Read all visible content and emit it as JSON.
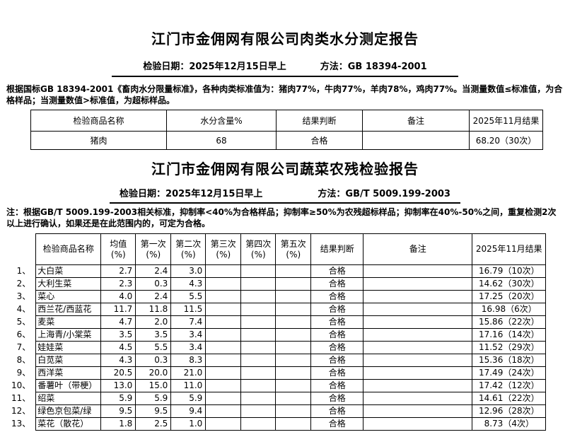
{
  "colors": {
    "text": "#000000",
    "background": "#ffffff",
    "border": "#000000"
  },
  "report1": {
    "title": "江门市金佣网有限公司肉类水分测定报告",
    "date_line": "检验日期：2025年12月15日早上",
    "method_line": "方法：GB 18394-2001",
    "note": "根据国标GB 18394-2001《畜肉水分限量标准》，各种肉类标准值为：猪肉77%，牛肉77%，羊肉78%，鸡肉77%。当测量数值≤标准值，为合格样品；当测量数值>标准值，为超标样品。",
    "table": {
      "headers": [
        "检验商品名称",
        "水分含量%",
        "结果判断",
        "备注",
        "2025年11月结果"
      ],
      "row": {
        "name": "猪肉",
        "moisture": "68",
        "result": "合格",
        "remark": "",
        "nov": "68.20（30次）"
      }
    }
  },
  "report2": {
    "title": "江门市金佣网有限公司蔬菜农残检验报告",
    "date_line": "检验日期：2025年12月15日早上",
    "method_line": "方法：GB/T 5009.199-2003",
    "note": "注：根据GB/T 5009.199-2003相关标准，抑制率<40%为合格样品；抑制率≥50%为农残超标样品；抑制率在40%-50%之间，重复检测2次以上进行确认，如果还是在此范围内的，可定为合格。",
    "table": {
      "headers": [
        {
          "l1": "检验商品名称",
          "l2": ""
        },
        {
          "l1": "均值",
          "l2": "(%)"
        },
        {
          "l1": "第一次",
          "l2": "(%)"
        },
        {
          "l1": "第二次",
          "l2": "(%)"
        },
        {
          "l1": "第三次",
          "l2": "(%)"
        },
        {
          "l1": "第四次",
          "l2": "(%)"
        },
        {
          "l1": "第五次",
          "l2": "(%)"
        },
        {
          "l1": "结果判断",
          "l2": ""
        },
        {
          "l1": "备注",
          "l2": ""
        },
        {
          "l1": "2025年11月结果",
          "l2": ""
        }
      ],
      "rows": [
        {
          "num": "1、",
          "name": "大白菜",
          "avg": "2.7",
          "t1": "2.4",
          "t2": "3.0",
          "t3": "",
          "t4": "",
          "t5": "",
          "result": "合格",
          "remark": "",
          "nov": "16.79（10次）"
        },
        {
          "num": "2、",
          "name": "大利生菜",
          "avg": "2.3",
          "t1": "0.3",
          "t2": "4.3",
          "t3": "",
          "t4": "",
          "t5": "",
          "result": "合格",
          "remark": "",
          "nov": "14.62（30次）"
        },
        {
          "num": "3、",
          "name": "菜心",
          "avg": "4.0",
          "t1": "2.4",
          "t2": "5.5",
          "t3": "",
          "t4": "",
          "t5": "",
          "result": "合格",
          "remark": "",
          "nov": "17.25（20次）"
        },
        {
          "num": "4、",
          "name": "西兰花/西蓝花",
          "avg": "11.7",
          "t1": "11.8",
          "t2": "11.5",
          "t3": "",
          "t4": "",
          "t5": "",
          "result": "合格",
          "remark": "",
          "nov": "16.98（6次）"
        },
        {
          "num": "5、",
          "name": "麦菜",
          "avg": "4.7",
          "t1": "2.0",
          "t2": "7.4",
          "t3": "",
          "t4": "",
          "t5": "",
          "result": "合格",
          "remark": "",
          "nov": "15.86（22次）"
        },
        {
          "num": "6、",
          "name": "上海青/小棠菜",
          "avg": "3.5",
          "t1": "3.5",
          "t2": "3.4",
          "t3": "",
          "t4": "",
          "t5": "",
          "result": "合格",
          "remark": "",
          "nov": "17.16（14次）"
        },
        {
          "num": "7、",
          "name": "娃娃菜",
          "avg": "4.5",
          "t1": "5.5",
          "t2": "3.4",
          "t3": "",
          "t4": "",
          "t5": "",
          "result": "合格",
          "remark": "",
          "nov": "11.52（29次）"
        },
        {
          "num": "8、",
          "name": "白苋菜",
          "avg": "4.3",
          "t1": "0.3",
          "t2": "8.3",
          "t3": "",
          "t4": "",
          "t5": "",
          "result": "合格",
          "remark": "",
          "nov": "15.36（18次）"
        },
        {
          "num": "9、",
          "name": "西洋菜",
          "avg": "20.5",
          "t1": "20.0",
          "t2": "21.0",
          "t3": "",
          "t4": "",
          "t5": "",
          "result": "合格",
          "remark": "",
          "nov": "17.49（24次）"
        },
        {
          "num": "10、",
          "name": "番薯叶（带梗）",
          "avg": "13.0",
          "t1": "15.0",
          "t2": "11.0",
          "t3": "",
          "t4": "",
          "t5": "",
          "result": "合格",
          "remark": "",
          "nov": "17.42（12次）"
        },
        {
          "num": "11、",
          "name": "绍菜",
          "avg": "5.9",
          "t1": "5.9",
          "t2": "5.9",
          "t3": "",
          "t4": "",
          "t5": "",
          "result": "合格",
          "remark": "",
          "nov": "14.61（22次）"
        },
        {
          "num": "12、",
          "name": "绿色京包菜/绿",
          "avg": "9.5",
          "t1": "9.5",
          "t2": "9.4",
          "t3": "",
          "t4": "",
          "t5": "",
          "result": "合格",
          "remark": "",
          "nov": "12.96（28次）"
        },
        {
          "num": "13、",
          "name": "菜花（散花）",
          "avg": "1.8",
          "t1": "2.5",
          "t2": "1.0",
          "t3": "",
          "t4": "",
          "t5": "",
          "result": "合格",
          "remark": "",
          "nov": "8.73（4次）"
        }
      ]
    }
  }
}
